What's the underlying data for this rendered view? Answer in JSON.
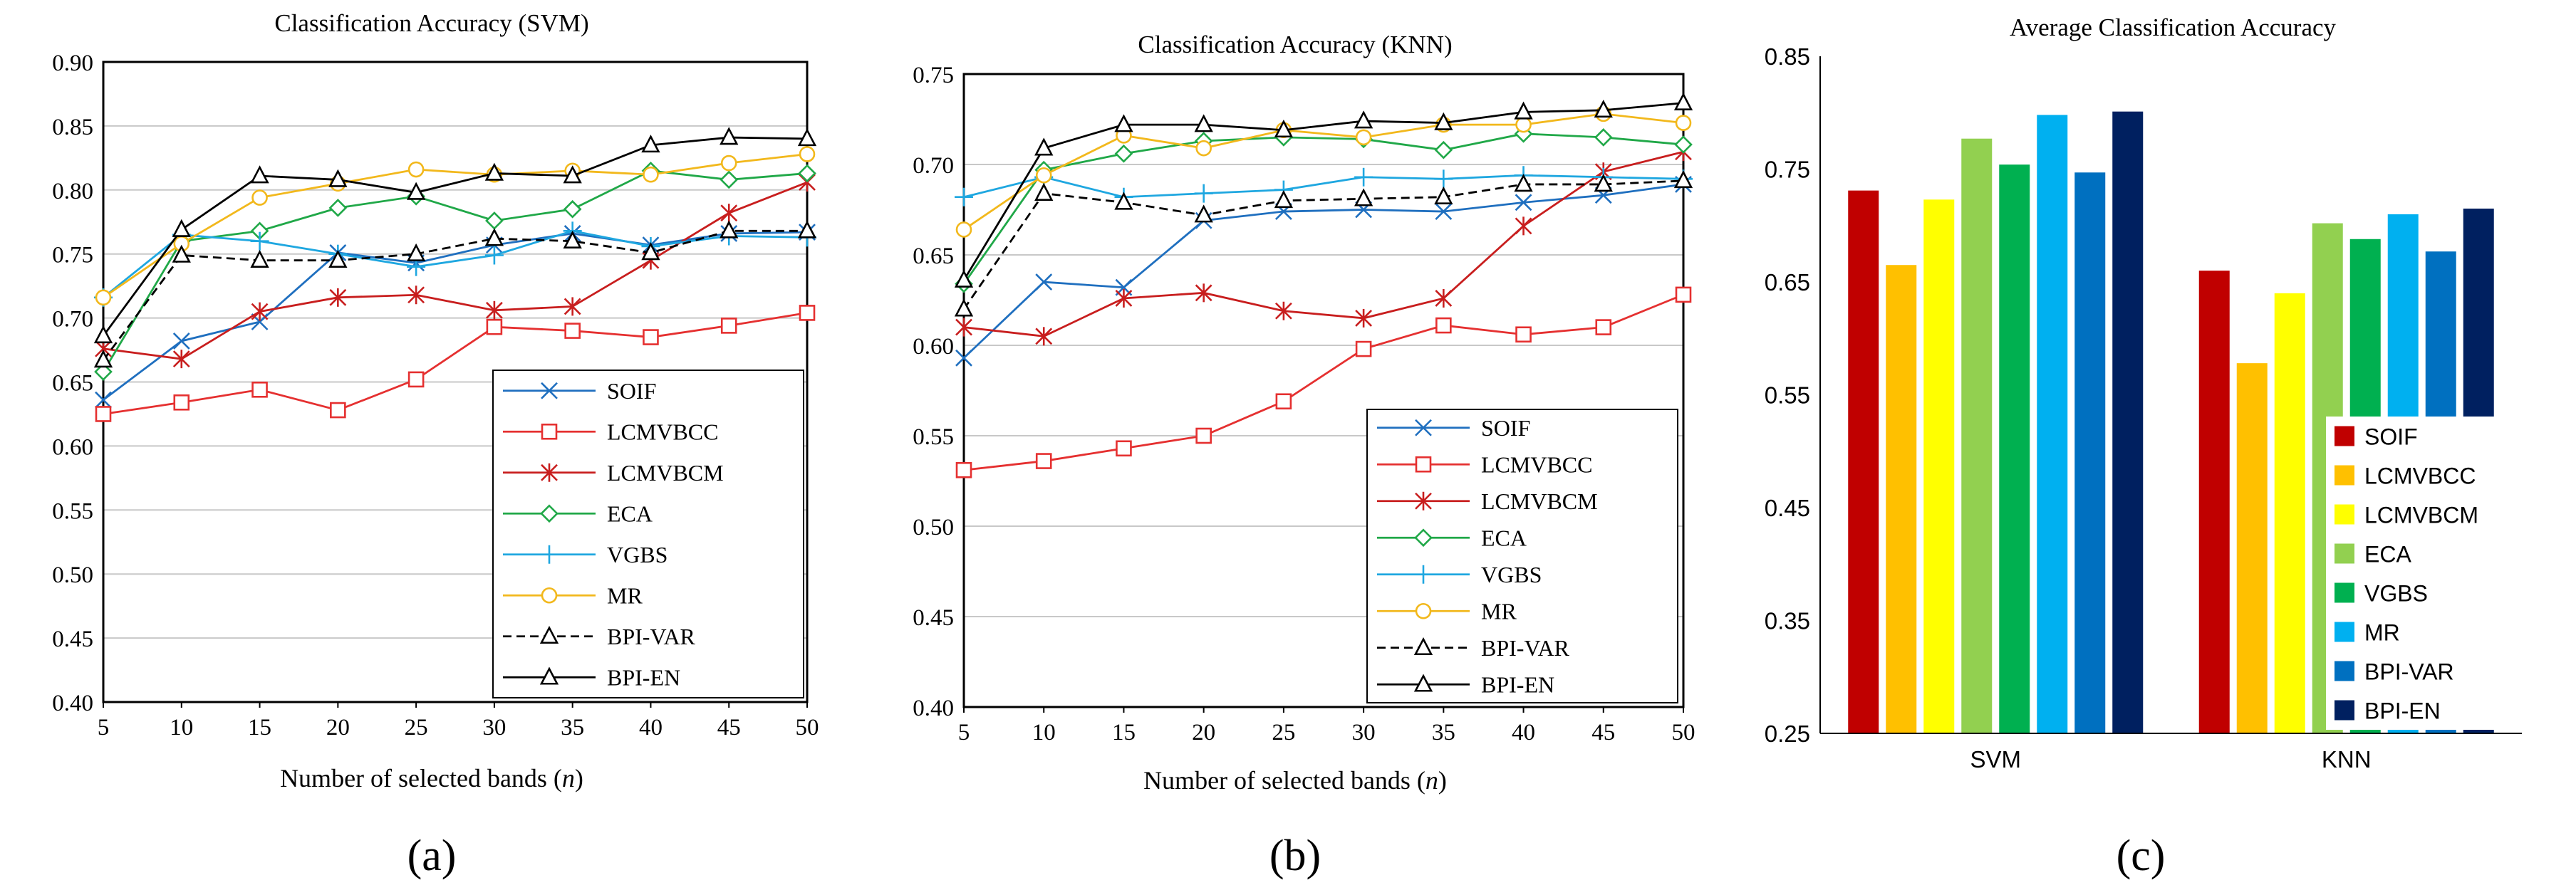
{
  "series_styles": {
    "SOIF": {
      "color": "#1f6fbf",
      "marker": "x",
      "dash": false
    },
    "LCMVBCC": {
      "color": "#e53030",
      "marker": "square",
      "dash": false
    },
    "LCMVBCM": {
      "color": "#c81e1e",
      "marker": "star",
      "dash": false
    },
    "ECA": {
      "color": "#20a848",
      "marker": "diamond",
      "dash": false
    },
    "VGBS": {
      "color": "#1fa7e0",
      "marker": "plus",
      "dash": false
    },
    "MR": {
      "color": "#f2b81c",
      "marker": "circle",
      "dash": false
    },
    "BPI-VAR": {
      "color": "#000000",
      "marker": "triangle",
      "dash": true
    },
    "BPI-EN": {
      "color": "#000000",
      "marker": "triangle",
      "dash": false
    }
  },
  "chart_data": [
    {
      "id": "a",
      "type": "line",
      "title": "Classification Accuracy (SVM)",
      "xlabel": "Number of selected bands (n)",
      "xlabel_main": "Number of selected bands (",
      "xlabel_var": "n",
      "xlabel_end": ")",
      "ylabel": "",
      "panel_label": "(a)",
      "x": [
        5,
        10,
        15,
        20,
        25,
        30,
        35,
        40,
        45,
        50
      ],
      "xlim": [
        5,
        50
      ],
      "ylim": [
        0.4,
        0.9
      ],
      "yticks": [
        "0.40",
        "0.45",
        "0.50",
        "0.55",
        "0.60",
        "0.65",
        "0.70",
        "0.75",
        "0.80",
        "0.85",
        "0.90"
      ],
      "grid": true,
      "legend_position": "bottom-right",
      "series": [
        {
          "name": "SOIF",
          "values": [
            0.636,
            0.682,
            0.697,
            0.751,
            0.743,
            0.757,
            0.766,
            0.757,
            0.766,
            0.767
          ]
        },
        {
          "name": "LCMVBCC",
          "values": [
            0.625,
            0.634,
            0.644,
            0.628,
            0.652,
            0.693,
            0.69,
            0.685,
            0.694,
            0.704
          ]
        },
        {
          "name": "LCMVBCM",
          "values": [
            0.676,
            0.668,
            0.705,
            0.716,
            0.718,
            0.706,
            0.709,
            0.745,
            0.782,
            0.806
          ]
        },
        {
          "name": "ECA",
          "values": [
            0.658,
            0.76,
            0.768,
            0.786,
            0.795,
            0.776,
            0.785,
            0.815,
            0.808,
            0.813
          ]
        },
        {
          "name": "VGBS",
          "values": [
            0.716,
            0.765,
            0.76,
            0.75,
            0.74,
            0.749,
            0.768,
            0.756,
            0.764,
            0.763
          ]
        },
        {
          "name": "MR",
          "values": [
            0.716,
            0.758,
            0.794,
            0.805,
            0.816,
            0.812,
            0.815,
            0.812,
            0.821,
            0.828
          ]
        },
        {
          "name": "BPI-VAR",
          "values": [
            0.667,
            0.749,
            0.745,
            0.745,
            0.75,
            0.762,
            0.76,
            0.751,
            0.768,
            0.768
          ]
        },
        {
          "name": "BPI-EN",
          "values": [
            0.686,
            0.769,
            0.811,
            0.808,
            0.798,
            0.813,
            0.811,
            0.835,
            0.841,
            0.84
          ]
        }
      ]
    },
    {
      "id": "b",
      "type": "line",
      "title": "Classification Accuracy (KNN)",
      "xlabel": "Number of selected bands (n)",
      "xlabel_main": "Number of selected bands (",
      "xlabel_var": "n",
      "xlabel_end": ")",
      "ylabel": "",
      "panel_label": "(b)",
      "x": [
        5,
        10,
        15,
        20,
        25,
        30,
        35,
        40,
        45,
        50
      ],
      "xlim": [
        5,
        50
      ],
      "ylim": [
        0.4,
        0.75
      ],
      "yticks": [
        "0.40",
        "0.45",
        "0.50",
        "0.55",
        "0.60",
        "0.65",
        "0.70",
        "0.75"
      ],
      "grid": true,
      "legend_position": "bottom-right",
      "series": [
        {
          "name": "SOIF",
          "values": [
            0.593,
            0.635,
            0.632,
            0.669,
            0.674,
            0.675,
            0.674,
            0.679,
            0.683,
            0.689
          ]
        },
        {
          "name": "LCMVBCC",
          "values": [
            0.531,
            0.536,
            0.543,
            0.55,
            0.569,
            0.598,
            0.611,
            0.606,
            0.61,
            0.628
          ]
        },
        {
          "name": "LCMVBCM",
          "values": [
            0.61,
            0.605,
            0.626,
            0.629,
            0.619,
            0.615,
            0.626,
            0.666,
            0.696,
            0.707
          ]
        },
        {
          "name": "ECA",
          "values": [
            0.634,
            0.697,
            0.706,
            0.713,
            0.715,
            0.714,
            0.708,
            0.717,
            0.715,
            0.711
          ]
        },
        {
          "name": "VGBS",
          "values": [
            0.682,
            0.693,
            0.682,
            0.684,
            0.686,
            0.693,
            0.692,
            0.694,
            0.693,
            0.692
          ]
        },
        {
          "name": "MR",
          "values": [
            0.664,
            0.694,
            0.716,
            0.709,
            0.719,
            0.715,
            0.722,
            0.722,
            0.728,
            0.723
          ]
        },
        {
          "name": "BPI-VAR",
          "values": [
            0.62,
            0.684,
            0.679,
            0.672,
            0.68,
            0.681,
            0.682,
            0.689,
            0.689,
            0.691
          ]
        },
        {
          "name": "BPI-EN",
          "values": [
            0.636,
            0.709,
            0.722,
            0.722,
            0.719,
            0.724,
            0.723,
            0.729,
            0.73,
            0.734
          ]
        }
      ]
    },
    {
      "id": "c",
      "type": "bar",
      "title": "Average Classification Accuracy",
      "xlabel": "",
      "ylabel": "",
      "panel_label": "(c)",
      "categories": [
        "SVM",
        "KNN"
      ],
      "ylim": [
        0.25,
        0.85
      ],
      "yticks": [
        "0.25",
        "0.35",
        "0.45",
        "0.55",
        "0.65",
        "0.75",
        "0.85"
      ],
      "grid": false,
      "legend_position": "bottom-right",
      "series": [
        {
          "name": "SOIF",
          "color": "#c00000",
          "values": [
            0.731,
            0.66
          ]
        },
        {
          "name": "LCMVBCC",
          "color": "#ffc000",
          "values": [
            0.665,
            0.578
          ]
        },
        {
          "name": "LCMVBCM",
          "color": "#ffff00",
          "values": [
            0.723,
            0.64
          ]
        },
        {
          "name": "ECA",
          "color": "#92d050",
          "values": [
            0.777,
            0.702
          ]
        },
        {
          "name": "VGBS",
          "color": "#00b050",
          "values": [
            0.754,
            0.688
          ]
        },
        {
          "name": "MR",
          "color": "#00b0f0",
          "values": [
            0.798,
            0.71
          ]
        },
        {
          "name": "BPI-VAR",
          "color": "#0070c0",
          "values": [
            0.747,
            0.677
          ]
        },
        {
          "name": "BPI-EN",
          "color": "#002060",
          "values": [
            0.801,
            0.715
          ]
        }
      ]
    }
  ]
}
